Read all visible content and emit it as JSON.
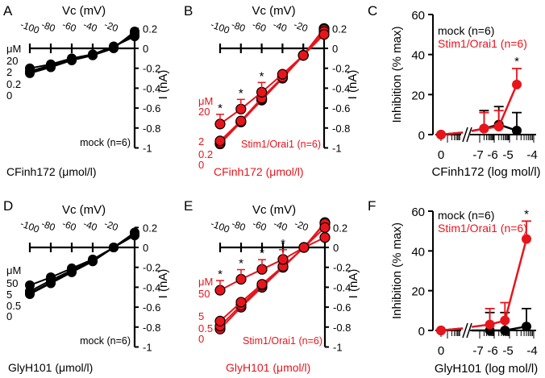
{
  "colors": {
    "mock": "#000000",
    "stim": "#e8141c"
  },
  "chart_data": [
    {
      "panel": "A",
      "type": "line",
      "group": "mock",
      "xlabel": "Vc  (mV)",
      "ylabel": "I  (nA)",
      "x": [
        -100,
        -80,
        -60,
        -40,
        -20,
        0
      ],
      "x_ticks": [
        "-100",
        "-80",
        "-60",
        "-40",
        "-20"
      ],
      "y_ticks": [
        "0.2",
        "0",
        "-0.2",
        "-0.4",
        "-0.6",
        "-0.8",
        "-1"
      ],
      "y_tick_values": [
        0.2,
        0,
        -0.2,
        -0.4,
        -0.6,
        -0.8,
        -1
      ],
      "ylim": [
        -1,
        0.2
      ],
      "conc_unit": "μM",
      "series": [
        {
          "name": "0",
          "values": [
            -0.25,
            -0.19,
            -0.12,
            -0.07,
            0.0,
            0.17
          ]
        },
        {
          "name": "0.2",
          "values": [
            -0.24,
            -0.18,
            -0.12,
            -0.07,
            0.01,
            0.16
          ]
        },
        {
          "name": "2",
          "values": [
            -0.23,
            -0.17,
            -0.11,
            -0.07,
            0.01,
            0.14
          ]
        },
        {
          "name": "20",
          "values": [
            -0.2,
            -0.16,
            -0.1,
            -0.06,
            0.02,
            0.12
          ]
        }
      ],
      "stars_at": [],
      "n_label": "mock (n=6)",
      "compound_label": "CFinh172 (μmol/l)"
    },
    {
      "panel": "B",
      "type": "line",
      "group": "stim",
      "xlabel": "Vc  (mV)",
      "ylabel": "I  (nA)",
      "x": [
        -100,
        -80,
        -60,
        -40,
        -20,
        0
      ],
      "x_ticks": [
        "-100",
        "-80",
        "-60",
        "-40",
        "-20"
      ],
      "y_ticks": [
        "0.2",
        "0",
        "-0.2",
        "-0.4",
        "-0.6",
        "-0.8",
        "-1"
      ],
      "y_tick_values": [
        0.2,
        0,
        -0.2,
        -0.4,
        -0.6,
        -0.8,
        -1
      ],
      "ylim": [
        -1,
        0.2
      ],
      "conc_unit": "μM",
      "series": [
        {
          "name": "0",
          "values": [
            -0.96,
            -0.74,
            -0.52,
            -0.3,
            -0.07,
            0.2
          ]
        },
        {
          "name": "0.2",
          "values": [
            -0.95,
            -0.74,
            -0.51,
            -0.29,
            -0.07,
            0.19
          ]
        },
        {
          "name": "2",
          "values": [
            -0.93,
            -0.73,
            -0.5,
            -0.29,
            -0.07,
            0.17
          ]
        },
        {
          "name": "20",
          "values": [
            -0.76,
            -0.61,
            -0.44,
            -0.26,
            -0.07,
            0.14
          ]
        }
      ],
      "stars_at": [
        -100,
        -80,
        -60
      ],
      "n_label": "Stim1/Orai1 (n=6)",
      "compound_label": "CFinh172 (μmol/l)"
    },
    {
      "panel": "C",
      "type": "line",
      "scale": "log",
      "xlabel": "CFinh172 (log mol/l)",
      "ylabel": "Inhibition (% max)",
      "x_ticks": [
        "0",
        "-7",
        "-6",
        "-5",
        "-4"
      ],
      "x_tick_values": [
        0,
        -7,
        -6,
        -5,
        -4
      ],
      "y_ticks": [
        "60",
        "40",
        "20",
        "0"
      ],
      "y_tick_values": [
        60,
        40,
        20,
        0
      ],
      "ylim": [
        0,
        60
      ],
      "x": [
        0,
        -6.7,
        -5.7,
        -4.7
      ],
      "series": [
        {
          "name": "mock (n=6)",
          "group": "mock",
          "values": [
            0,
            3,
            5,
            2
          ],
          "err": [
            0,
            12,
            14,
            11
          ]
        },
        {
          "name": "Stim1/Orai1 (n=6)",
          "group": "stim",
          "values": [
            0,
            3,
            4,
            25
          ],
          "err": [
            0,
            11,
            12,
            33
          ]
        }
      ],
      "stars_at": [
        -4.7
      ]
    },
    {
      "panel": "D",
      "type": "line",
      "group": "mock",
      "xlabel": "Vc  (mV)",
      "ylabel": "I  (nA)",
      "x": [
        -100,
        -80,
        -60,
        -40,
        -20,
        0
      ],
      "x_ticks": [
        "-100",
        "-80",
        "-60",
        "-40",
        "-20"
      ],
      "y_ticks": [
        "0.2",
        "0",
        "-0.2",
        "-0.4",
        "-0.6",
        "-0.8",
        "-1"
      ],
      "y_tick_values": [
        0.2,
        0,
        -0.2,
        -0.4,
        -0.6,
        -0.8,
        -1
      ],
      "ylim": [
        -1,
        0.2
      ],
      "conc_unit": "μM",
      "series": [
        {
          "name": "0",
          "values": [
            -0.47,
            -0.36,
            -0.25,
            -0.14,
            0.0,
            0.15
          ]
        },
        {
          "name": "0.5",
          "values": [
            -0.46,
            -0.35,
            -0.24,
            -0.14,
            0.0,
            0.14
          ]
        },
        {
          "name": "5",
          "values": [
            -0.44,
            -0.33,
            -0.23,
            -0.13,
            0.0,
            0.14
          ]
        },
        {
          "name": "50",
          "values": [
            -0.38,
            -0.3,
            -0.21,
            -0.12,
            0.0,
            0.12
          ]
        }
      ],
      "stars_at": [],
      "n_label": "mock (n=6)",
      "compound_label": "GlyH101 (μmol/l)"
    },
    {
      "panel": "E",
      "type": "line",
      "group": "stim",
      "xlabel": "Vc  (mV)",
      "ylabel": "I  (nA)",
      "x": [
        -100,
        -80,
        -60,
        -40,
        -20,
        0
      ],
      "x_ticks": [
        "-100",
        "-80",
        "-60",
        "-40",
        "-20"
      ],
      "y_ticks": [
        "0.2",
        "0",
        "-0.2",
        "-0.4",
        "-0.6",
        "-0.8",
        "-1"
      ],
      "y_tick_values": [
        0.2,
        0,
        -0.2,
        -0.4,
        -0.6,
        -0.8,
        -1
      ],
      "ylim": [
        -1,
        0.2
      ],
      "conc_unit": "μM",
      "series": [
        {
          "name": "0",
          "values": [
            -0.82,
            -0.6,
            -0.4,
            -0.2,
            0.0,
            0.25
          ]
        },
        {
          "name": "0.5",
          "values": [
            -0.79,
            -0.58,
            -0.38,
            -0.19,
            0.0,
            0.24
          ]
        },
        {
          "name": "5",
          "values": [
            -0.74,
            -0.55,
            -0.37,
            -0.19,
            0.0,
            0.2
          ]
        },
        {
          "name": "50",
          "values": [
            -0.43,
            -0.32,
            -0.22,
            -0.12,
            0.0,
            0.1
          ]
        }
      ],
      "stars_at": [
        -100,
        -80,
        -60,
        -40
      ],
      "n_label": "Stim1/Orai1 (n=6)",
      "compound_label": "GlyH101 (μmol/l)"
    },
    {
      "panel": "F",
      "type": "line",
      "scale": "log",
      "xlabel": "GlyH101 (log mol/l)",
      "ylabel": "Inhibition (% max)",
      "x_ticks": [
        "0",
        "-7",
        "-6",
        "-5",
        "-4"
      ],
      "x_tick_values": [
        0,
        -7,
        -6,
        -5,
        -4
      ],
      "y_ticks": [
        "60",
        "40",
        "20",
        "0"
      ],
      "y_tick_values": [
        60,
        40,
        20,
        0
      ],
      "ylim": [
        0,
        60
      ],
      "x": [
        0,
        -6.3,
        -5.3,
        -4.3
      ],
      "series": [
        {
          "name": "mock (n=6)",
          "group": "mock",
          "values": [
            0,
            0,
            0,
            2
          ],
          "err": [
            0,
            9,
            9,
            11
          ]
        },
        {
          "name": "Stim1/Orai1 (n=6)",
          "group": "stim",
          "values": [
            0,
            3,
            5,
            46
          ],
          "err": [
            0,
            11,
            14,
            55
          ]
        }
      ],
      "stars_at": [
        -4.3
      ]
    }
  ]
}
